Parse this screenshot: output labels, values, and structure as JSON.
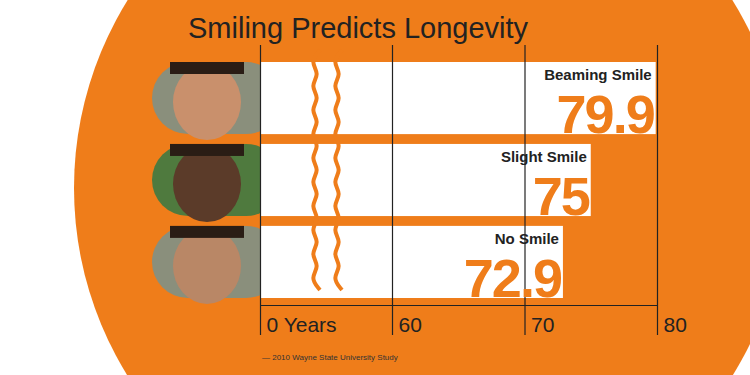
{
  "chart_data": {
    "type": "bar",
    "title": "Smiling Predicts Longevity",
    "orientation": "horizontal",
    "categories": [
      "Beaming Smile",
      "Slight Smile",
      "No Smile"
    ],
    "values": [
      79.9,
      75,
      72.9
    ],
    "color": "#ffffff",
    "xlim": [
      0,
      80
    ],
    "xticks": [
      {
        "value": 0,
        "label": "0 Years"
      },
      60,
      70,
      80
    ],
    "grid": true,
    "data_labels": true,
    "annotations": [
      "— 2010 Wayne State University Study"
    ]
  }
}
